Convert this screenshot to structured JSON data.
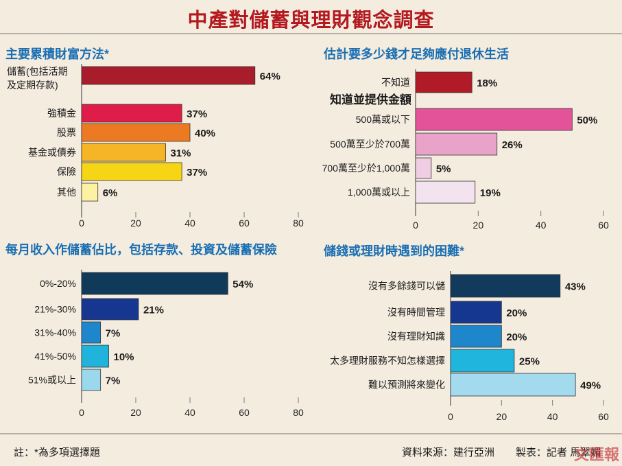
{
  "title": "中產對儲蓄與理財觀念調查",
  "footnote": "註：*為多項選擇題",
  "source": "資料來源：建行亞洲",
  "credit": "製表：記者 馬翠媚",
  "watermark": "文匯報",
  "chart_data": [
    {
      "type": "bar",
      "orientation": "horizontal",
      "title": "主要累積財富方法*",
      "xlim": [
        0,
        80
      ],
      "xticks": [
        0,
        20,
        40,
        60,
        80
      ],
      "categories": [
        "儲蓄(包括活期\n及定期存款)",
        "強積金",
        "股票",
        "基金或債券",
        "保險",
        "其他"
      ],
      "values": [
        64,
        37,
        40,
        31,
        37,
        6
      ],
      "value_labels": [
        "64%",
        "37%",
        "40%",
        "31%",
        "37%",
        "6%"
      ],
      "colors": [
        "#a91d2b",
        "#e01d48",
        "#ec7a22",
        "#f6b526",
        "#f6d515",
        "#fdf2a2"
      ]
    },
    {
      "type": "bar",
      "orientation": "horizontal",
      "title": "估計要多少錢才足夠應付退休生活",
      "subheading": "知道並提供金額",
      "xlim": [
        0,
        60
      ],
      "xticks": [
        0,
        20,
        40,
        60
      ],
      "categories": [
        "不知道",
        "500萬或以下",
        "500萬至少於700萬",
        "700萬至少於1,000萬",
        "1,000萬或以上"
      ],
      "values": [
        18,
        50,
        26,
        5,
        19
      ],
      "value_labels": [
        "18%",
        "50%",
        "26%",
        "5%",
        "19%"
      ],
      "colors": [
        "#b01b27",
        "#e2539a",
        "#eaa3c8",
        "#f1cde3",
        "#f3e3ef"
      ]
    },
    {
      "type": "bar",
      "orientation": "horizontal",
      "title": "每月收入作儲蓄佔比，包括存款、投資及儲蓄保險",
      "xlim": [
        0,
        80
      ],
      "xticks": [
        0,
        20,
        40,
        60,
        80
      ],
      "categories": [
        "0%-20%",
        "21%-30%",
        "31%-40%",
        "41%-50%",
        "51%或以上"
      ],
      "values": [
        54,
        21,
        7,
        10,
        7
      ],
      "value_labels": [
        "54%",
        "21%",
        "7%",
        "10%",
        "7%"
      ],
      "colors": [
        "#103a5a",
        "#16368f",
        "#1d86cd",
        "#20b3dc",
        "#9ad8ec"
      ]
    },
    {
      "type": "bar",
      "orientation": "horizontal",
      "title": "儲錢或理財時遇到的困難*",
      "xlim": [
        0,
        60
      ],
      "xticks": [
        0,
        20,
        40,
        60
      ],
      "categories": [
        "沒有多餘錢可以儲",
        "沒有時間管理",
        "沒有理財知識",
        "太多理財服務不知怎樣選擇",
        "難以預測將來變化"
      ],
      "values": [
        43,
        20,
        20,
        25,
        49
      ],
      "value_labels": [
        "43%",
        "20%",
        "20%",
        "25%",
        "49%"
      ],
      "colors": [
        "#113a5c",
        "#16378f",
        "#1e87cc",
        "#20b5dc",
        "#a3daee"
      ]
    }
  ]
}
